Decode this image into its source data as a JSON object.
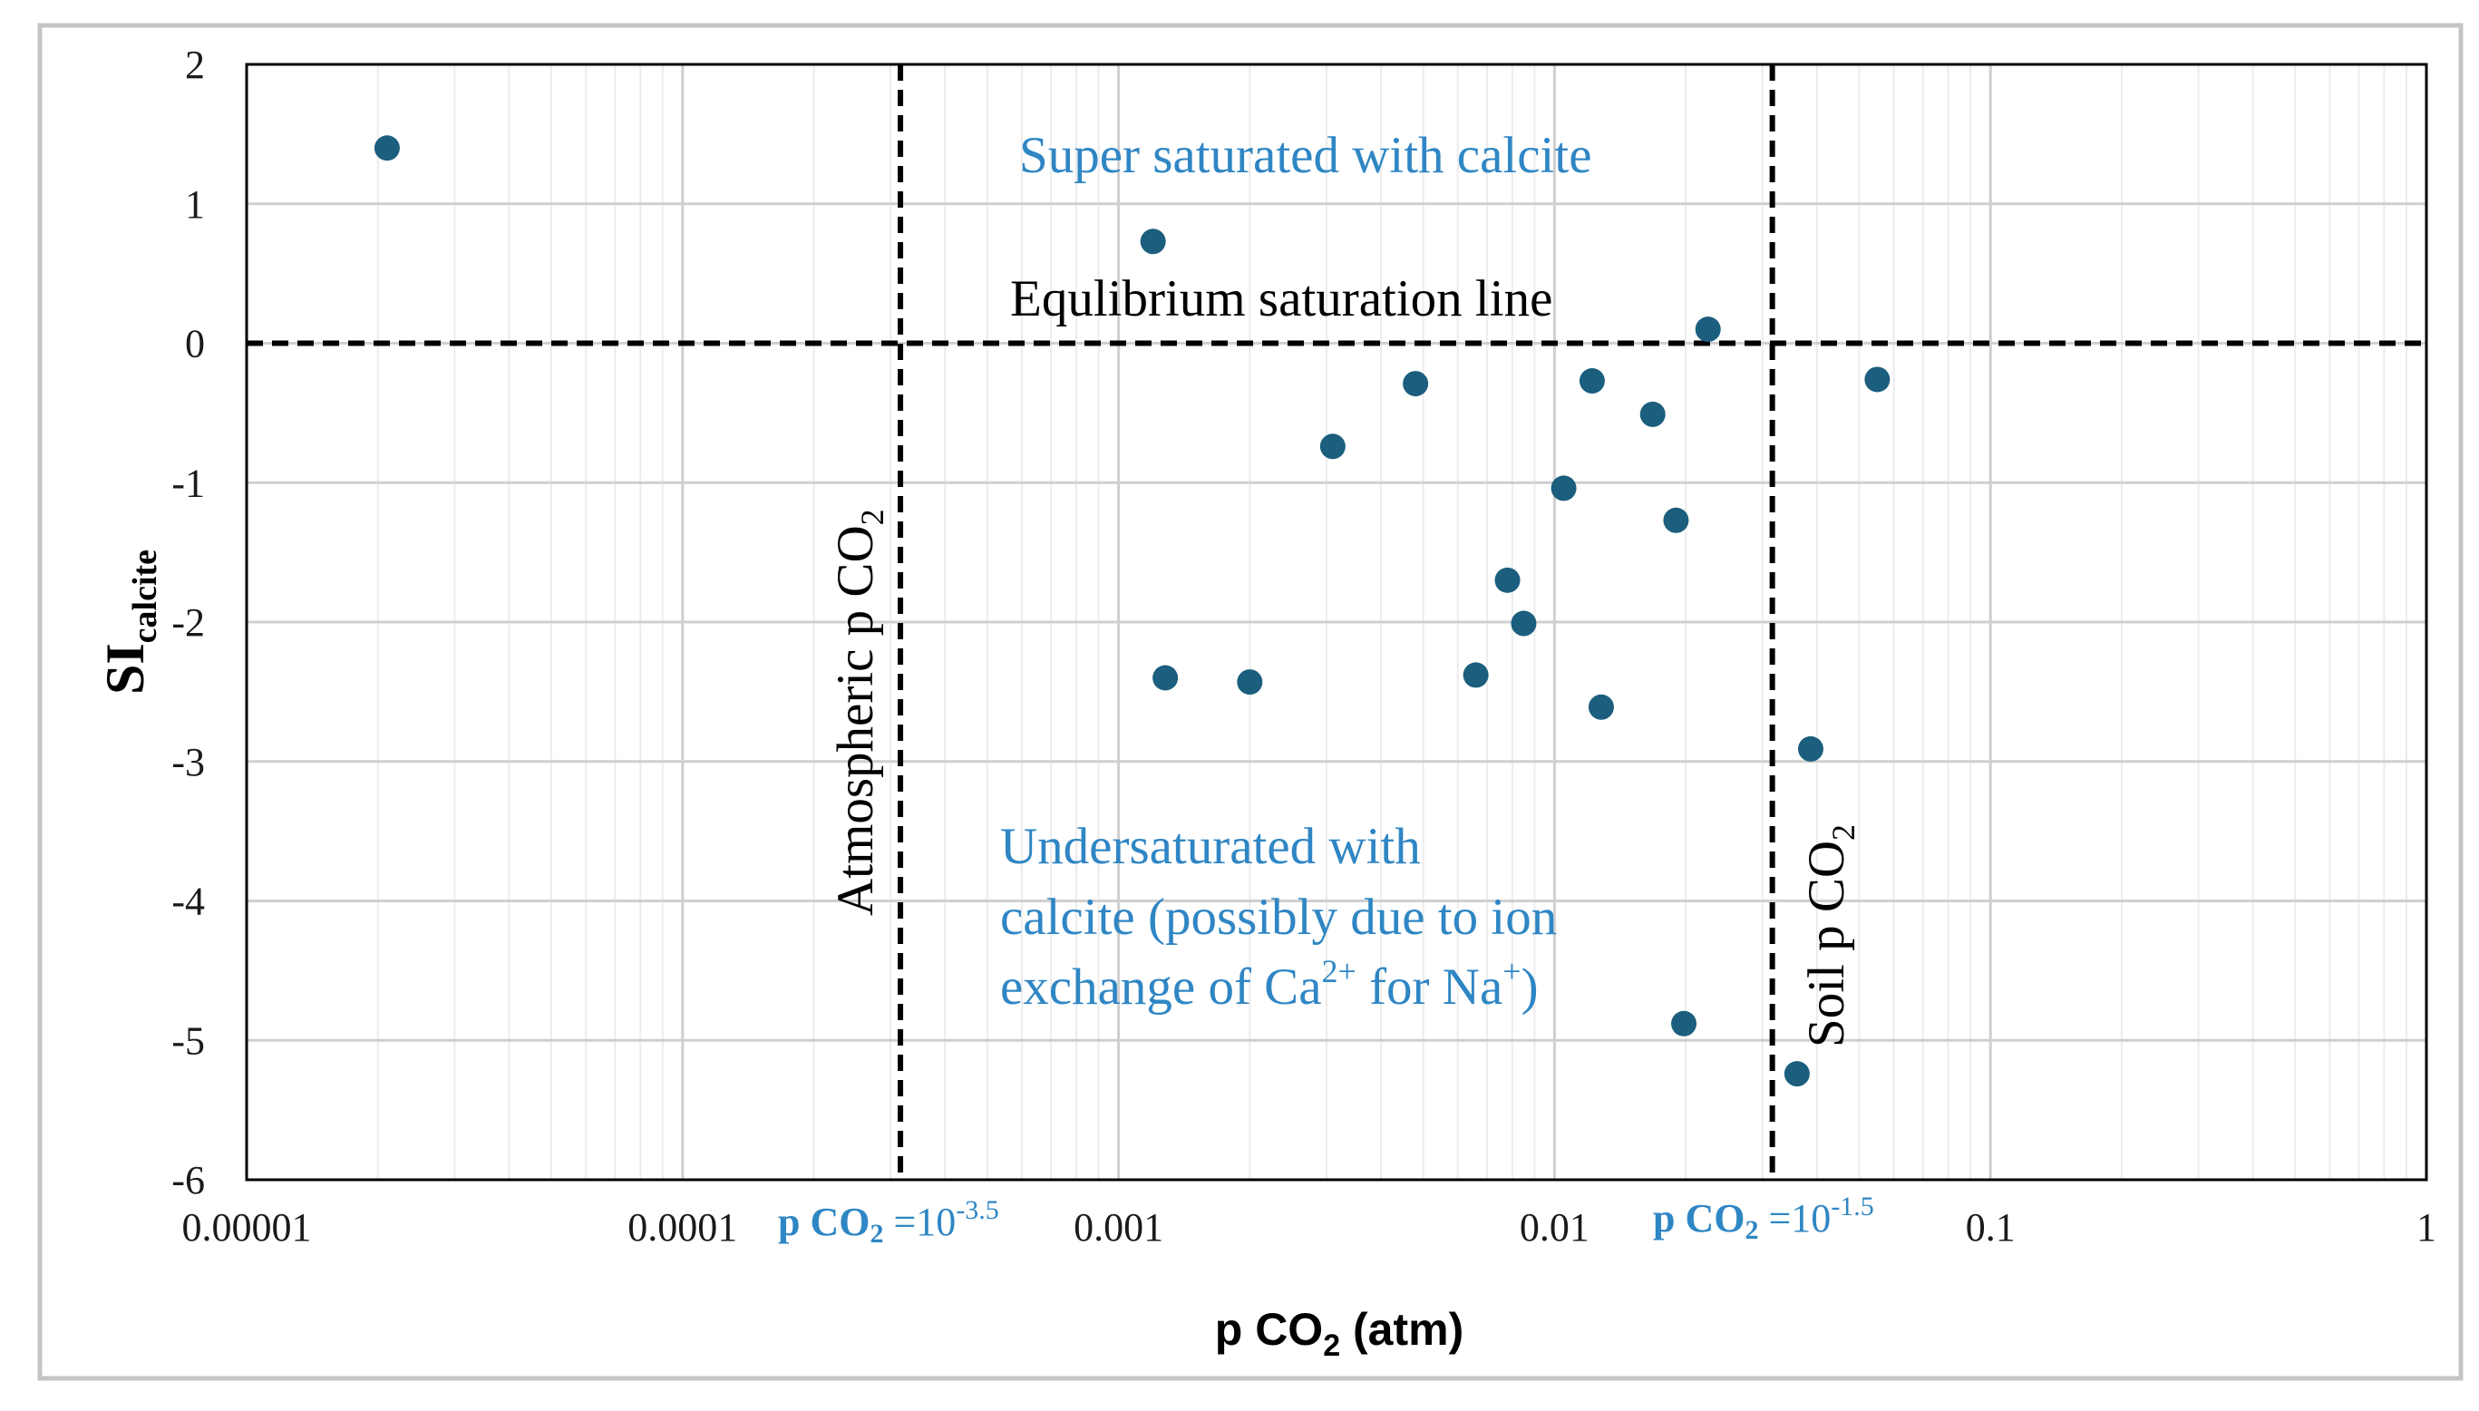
{
  "chart_data": {
    "type": "scatter",
    "title": "",
    "xlabel": {
      "main": "p CO",
      "sub": "2",
      "tail": " (atm)"
    },
    "ylabel": {
      "main": "SI",
      "sub": "calcite"
    },
    "xscale": "log",
    "xlim": [
      1e-05,
      1
    ],
    "ylim": [
      -6,
      2
    ],
    "grid": true,
    "x_tick_labels": [
      "0.00001",
      "0.0001",
      "0.001",
      "0.01",
      "0.1",
      "1"
    ],
    "x_ticks": [
      1e-05,
      0.0001,
      0.001,
      0.01,
      0.1,
      1
    ],
    "y_tick_labels": [
      "2",
      "1",
      "0",
      "-1",
      "-2",
      "-3",
      "-4",
      "-5",
      "-6"
    ],
    "y_ticks": [
      2,
      1,
      0,
      -1,
      -2,
      -3,
      -4,
      -5,
      -6
    ],
    "marker_color": "#1b5e7e",
    "points": [
      {
        "x": 2.1e-05,
        "y": 1.4
      },
      {
        "x": 0.0012,
        "y": 0.73
      },
      {
        "x": 0.0225,
        "y": 0.1
      },
      {
        "x": 0.0048,
        "y": -0.29
      },
      {
        "x": 0.0122,
        "y": -0.27
      },
      {
        "x": 0.055,
        "y": -0.26
      },
      {
        "x": 0.0168,
        "y": -0.51
      },
      {
        "x": 0.0031,
        "y": -0.74
      },
      {
        "x": 0.0105,
        "y": -1.04
      },
      {
        "x": 0.019,
        "y": -1.27
      },
      {
        "x": 0.0078,
        "y": -1.7
      },
      {
        "x": 0.0085,
        "y": -2.01
      },
      {
        "x": 0.00128,
        "y": -2.4
      },
      {
        "x": 0.002,
        "y": -2.43
      },
      {
        "x": 0.0066,
        "y": -2.38
      },
      {
        "x": 0.0128,
        "y": -2.61
      },
      {
        "x": 0.0387,
        "y": -2.91
      },
      {
        "x": 0.0198,
        "y": -4.88
      },
      {
        "x": 0.036,
        "y": -5.24
      }
    ],
    "reference_lines": [
      {
        "orientation": "horizontal",
        "value": 0,
        "style": "dashed",
        "label": "Equlibrium saturation line"
      },
      {
        "orientation": "vertical",
        "value": 0.000316,
        "style": "dashed",
        "label": {
          "main": "Atmospheric p CO",
          "sub": "2"
        }
      },
      {
        "orientation": "vertical",
        "value": 0.0316,
        "style": "dashed",
        "label": {
          "main": "Soil p CO",
          "sub": "2"
        }
      }
    ],
    "annotations": {
      "supersaturated": "Super saturated with calcite",
      "undersaturated_lines": [
        "Undersaturated with",
        "calcite (possibly due to ion"
      ],
      "undersaturated_line3": {
        "a": "exchange of Ca",
        "sup1": "2+",
        "b": " for Na",
        "sup2": "+",
        "c": ")"
      },
      "atm_pco2": {
        "label": "p CO",
        "sub": "2",
        "eq": " =10",
        "exp": "-3.5"
      },
      "soil_pco2": {
        "label": "p CO",
        "sub": "2",
        "eq": " =10",
        "exp": "-1.5"
      }
    }
  }
}
